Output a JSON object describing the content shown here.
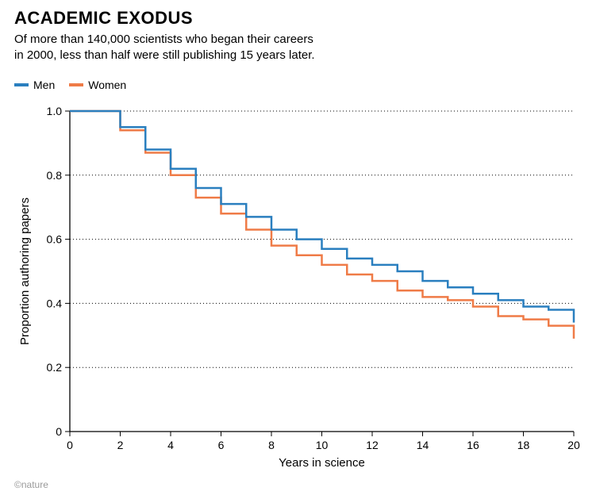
{
  "title": "ACADEMIC EXODUS",
  "title_fontsize": 22,
  "subtitle_line1": "Of more than 140,000 scientists who began their careers",
  "subtitle_line2": "in 2000, less than half were still publishing 15 years later.",
  "subtitle_fontsize": 15,
  "legend": {
    "items": [
      {
        "label": "Men",
        "color": "#2a7fbf"
      },
      {
        "label": "Women",
        "color": "#ef7b47"
      }
    ]
  },
  "chart": {
    "type": "step-line",
    "xlabel": "Years in science",
    "ylabel": "Proportion authoring papers",
    "label_fontsize": 15,
    "xlim": [
      0,
      20
    ],
    "ylim": [
      0,
      1.0
    ],
    "xtick_step": 2,
    "ytick_step": 0.2,
    "axis_color": "#000000",
    "grid_color": "#000000",
    "grid_dash": "1,3",
    "background_color": "#ffffff",
    "line_width": 2.5,
    "series": [
      {
        "name": "Men",
        "color": "#2a7fbf",
        "x": [
          0,
          1,
          2,
          3,
          4,
          5,
          6,
          7,
          8,
          9,
          10,
          11,
          12,
          13,
          14,
          15,
          16,
          17,
          18,
          19,
          20
        ],
        "y": [
          1.0,
          1.0,
          0.95,
          0.88,
          0.82,
          0.76,
          0.71,
          0.67,
          0.63,
          0.6,
          0.57,
          0.54,
          0.52,
          0.5,
          0.47,
          0.45,
          0.43,
          0.41,
          0.39,
          0.38,
          0.34
        ]
      },
      {
        "name": "Women",
        "color": "#ef7b47",
        "x": [
          0,
          1,
          2,
          3,
          4,
          5,
          6,
          7,
          8,
          9,
          10,
          11,
          12,
          13,
          14,
          15,
          16,
          17,
          18,
          19,
          20
        ],
        "y": [
          1.0,
          1.0,
          0.94,
          0.87,
          0.8,
          0.73,
          0.68,
          0.63,
          0.58,
          0.55,
          0.52,
          0.49,
          0.47,
          0.44,
          0.42,
          0.41,
          0.39,
          0.36,
          0.35,
          0.33,
          0.29
        ]
      }
    ]
  },
  "copyright": "©nature"
}
